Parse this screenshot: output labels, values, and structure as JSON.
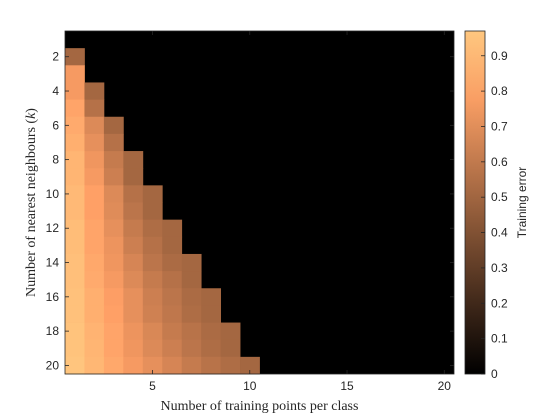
{
  "chart_data": {
    "type": "heatmap",
    "title": "",
    "xlabel": "Number of training points per class",
    "ylabel": "Number of nearest neighbours (k)",
    "x_range": [
      1,
      20
    ],
    "y_range": [
      1,
      20
    ],
    "x_ticks": [
      5,
      10,
      15,
      20
    ],
    "y_ticks": [
      2,
      4,
      6,
      8,
      10,
      12,
      14,
      16,
      18,
      20
    ],
    "grid": false,
    "background_color": "#000000",
    "colormap": "copper",
    "colorbar": {
      "label": "Training error",
      "range": [
        0,
        0.97
      ],
      "ticks": [
        0,
        0.1,
        0.2,
        0.3,
        0.4,
        0.5,
        0.6,
        0.7,
        0.8,
        0.9
      ],
      "tick_labels": [
        "0",
        "0.1",
        "0.2",
        "0.3",
        "0.4",
        "0.5",
        "0.6",
        "0.7",
        "0.8",
        "0.9"
      ],
      "placement": "right"
    },
    "rows": [
      {
        "k": 1,
        "values": []
      },
      {
        "k": 2,
        "values": [
          0.5
        ]
      },
      {
        "k": 3,
        "values": [
          0.75
        ]
      },
      {
        "k": 4,
        "values": [
          0.75,
          0.5
        ]
      },
      {
        "k": 5,
        "values": [
          0.8,
          0.55
        ]
      },
      {
        "k": 6,
        "values": [
          0.83,
          0.67,
          0.5
        ]
      },
      {
        "k": 7,
        "values": [
          0.85,
          0.7,
          0.55
        ]
      },
      {
        "k": 8,
        "values": [
          0.88,
          0.73,
          0.6,
          0.5
        ]
      },
      {
        "k": 9,
        "values": [
          0.88,
          0.75,
          0.62,
          0.5
        ]
      },
      {
        "k": 10,
        "values": [
          0.9,
          0.78,
          0.67,
          0.55,
          0.5
        ]
      },
      {
        "k": 11,
        "values": [
          0.9,
          0.78,
          0.68,
          0.57,
          0.5
        ]
      },
      {
        "k": 12,
        "values": [
          0.92,
          0.8,
          0.7,
          0.6,
          0.53,
          0.5
        ]
      },
      {
        "k": 13,
        "values": [
          0.92,
          0.8,
          0.72,
          0.62,
          0.55,
          0.5
        ]
      },
      {
        "k": 14,
        "values": [
          0.93,
          0.82,
          0.73,
          0.65,
          0.57,
          0.52,
          0.5
        ]
      },
      {
        "k": 15,
        "values": [
          0.93,
          0.83,
          0.75,
          0.67,
          0.6,
          0.55,
          0.5
        ]
      },
      {
        "k": 16,
        "values": [
          0.94,
          0.85,
          0.77,
          0.7,
          0.62,
          0.57,
          0.52,
          0.5
        ]
      },
      {
        "k": 17,
        "values": [
          0.94,
          0.85,
          0.78,
          0.7,
          0.63,
          0.58,
          0.53,
          0.5
        ]
      },
      {
        "k": 18,
        "values": [
          0.95,
          0.87,
          0.8,
          0.72,
          0.66,
          0.6,
          0.56,
          0.52,
          0.5
        ]
      },
      {
        "k": 19,
        "values": [
          0.95,
          0.88,
          0.8,
          0.73,
          0.67,
          0.62,
          0.57,
          0.53,
          0.5
        ]
      },
      {
        "k": 20,
        "values": [
          0.96,
          0.89,
          0.82,
          0.75,
          0.7,
          0.65,
          0.6,
          0.56,
          0.53,
          0.5
        ]
      }
    ]
  }
}
